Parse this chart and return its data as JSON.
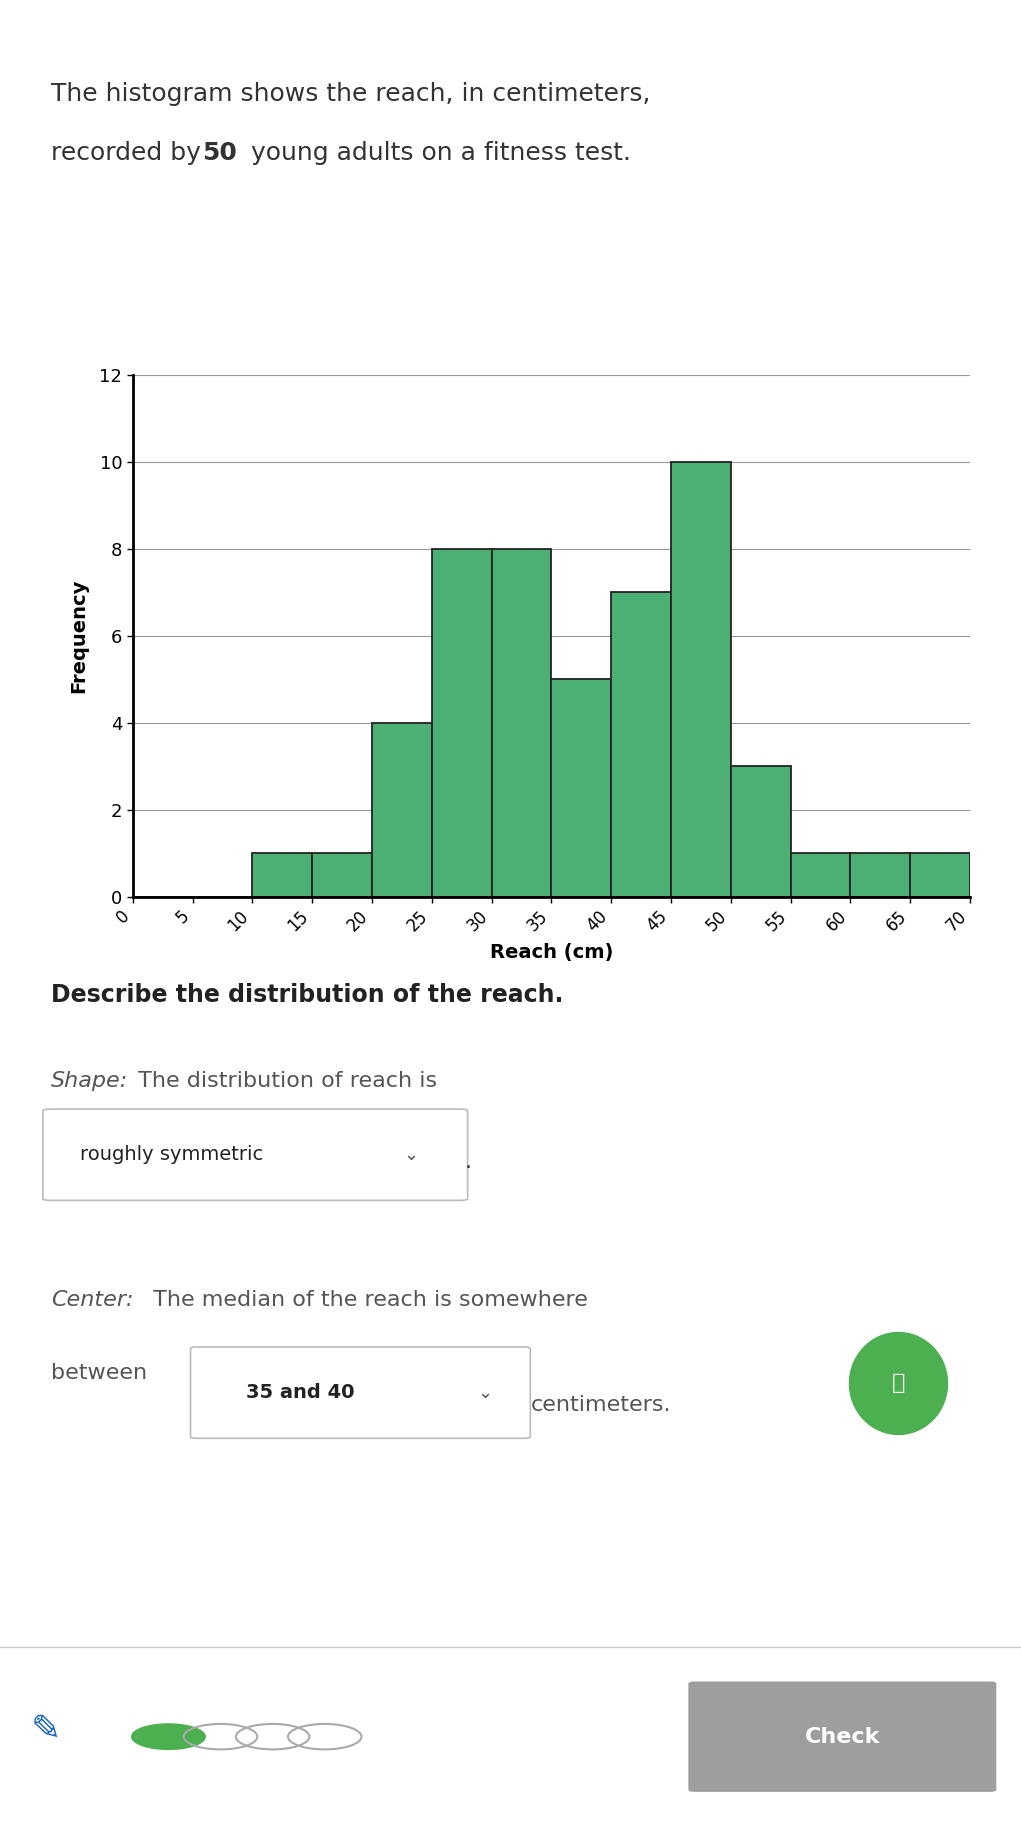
{
  "title_line1": "The histogram shows the reach, in centimeters,",
  "title_line2_pre": "recorded by ",
  "title_bold": "50",
  "title_line2_post": " young adults on a fitness test.",
  "bin_edges": [
    0,
    5,
    10,
    15,
    20,
    25,
    30,
    35,
    40,
    45,
    50,
    55,
    60,
    65,
    70
  ],
  "frequencies": [
    0,
    0,
    1,
    1,
    4,
    8,
    8,
    5,
    7,
    10,
    3,
    1,
    1,
    1
  ],
  "bar_color": "#4caf74",
  "bar_edge_color": "#222222",
  "xlabel": "Reach (cm)",
  "ylabel": "Frequency",
  "ylim": [
    0,
    12
  ],
  "yticks": [
    0,
    2,
    4,
    6,
    8,
    10,
    12
  ],
  "xticks": [
    0,
    5,
    10,
    15,
    20,
    25,
    30,
    35,
    40,
    45,
    50,
    55,
    60,
    65,
    70
  ],
  "grid_color": "#999999",
  "background_color": "#ffffff",
  "describe_title": "Describe the distribution of the reach.",
  "shape_label": "Shape:",
  "shape_rest": " The distribution of reach is",
  "shape_answer": "roughly symmetric",
  "center_label": "Center:",
  "center_rest": " The median of the reach is somewhere",
  "center_text2": "between",
  "center_answer": "35 and 40",
  "center_units": "centimeters.",
  "check_button": "Check",
  "text_color_dark": "#333333",
  "text_color_mid": "#555555",
  "title_fontsize": 18,
  "body_fontsize": 16,
  "dot_colors": [
    "#4CAF50",
    "#cccccc",
    "#cccccc",
    "#cccccc"
  ],
  "bulb_color": "#4CAF50",
  "check_btn_color": "#9e9e9e",
  "bottom_border_color": "#cccccc"
}
